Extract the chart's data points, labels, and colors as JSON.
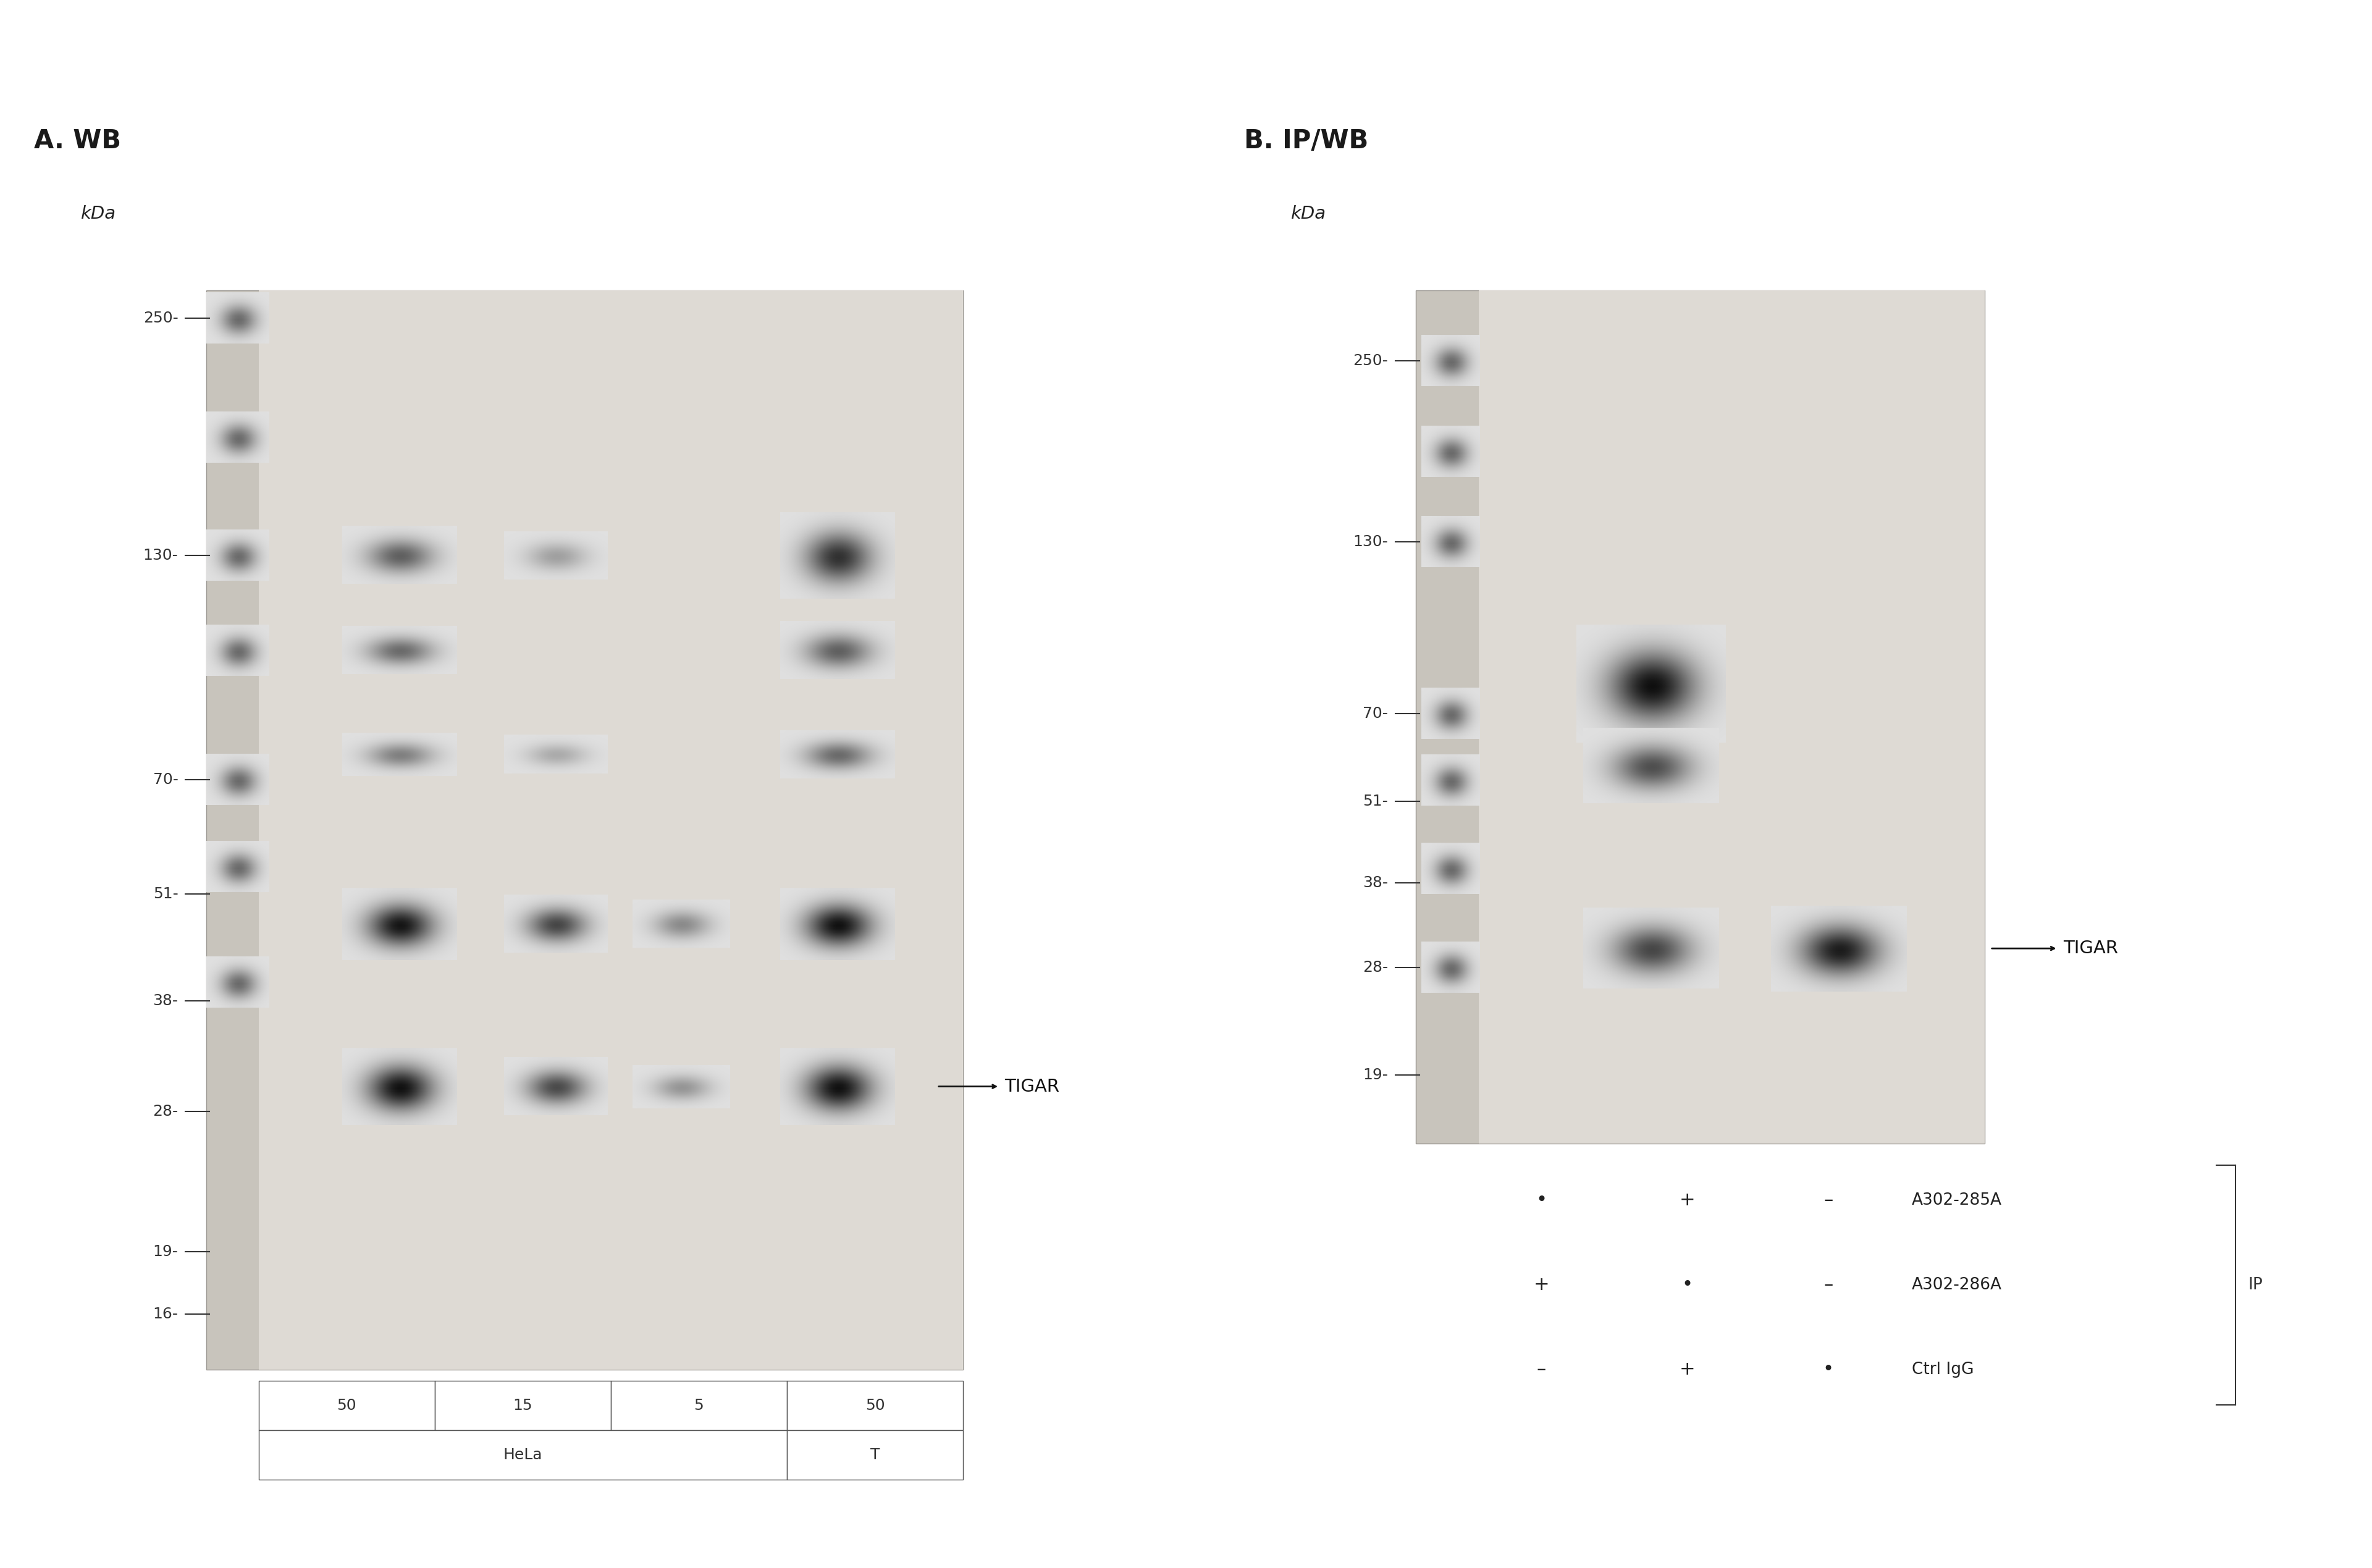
{
  "panel_A_title": "A. WB",
  "panel_B_title": "B. IP/WB",
  "kda_label": "kDa",
  "mw_markers_A": [
    250,
    130,
    70,
    51,
    38,
    28,
    19,
    16
  ],
  "mw_markers_B": [
    250,
    130,
    70,
    51,
    38,
    28,
    19
  ],
  "table_A_amounts": [
    "50",
    "15",
    "5",
    "50"
  ],
  "table_A_groups": [
    [
      "HeLa",
      3
    ],
    [
      "T",
      1
    ]
  ],
  "dot_rows_B": [
    [
      "•",
      "+",
      "–",
      "A302-285A"
    ],
    [
      "+",
      "•",
      "–",
      "A302-286A"
    ],
    [
      "–",
      "+",
      "•",
      "Ctrl IgG"
    ]
  ],
  "ip_label": "IP",
  "bands_A": [
    [
      0,
      130,
      0.6,
      1.0,
      1.2
    ],
    [
      0,
      100,
      0.55,
      1.0,
      1.0
    ],
    [
      0,
      75,
      0.45,
      1.0,
      0.9
    ],
    [
      0,
      47,
      0.95,
      1.0,
      1.5
    ],
    [
      0,
      30,
      0.97,
      1.0,
      1.6
    ],
    [
      1,
      130,
      0.3,
      0.9,
      1.0
    ],
    [
      1,
      75,
      0.25,
      0.9,
      0.8
    ],
    [
      1,
      47,
      0.72,
      0.9,
      1.2
    ],
    [
      1,
      30,
      0.7,
      0.9,
      1.2
    ],
    [
      2,
      47,
      0.4,
      0.85,
      1.0
    ],
    [
      2,
      30,
      0.35,
      0.85,
      0.9
    ],
    [
      3,
      130,
      0.82,
      1.0,
      1.8
    ],
    [
      3,
      100,
      0.6,
      1.0,
      1.2
    ],
    [
      3,
      75,
      0.55,
      1.0,
      1.0
    ],
    [
      3,
      47,
      0.97,
      1.0,
      1.5
    ],
    [
      3,
      30,
      0.97,
      1.0,
      1.6
    ]
  ],
  "bands_B": [
    [
      0,
      78,
      0.98,
      1.1,
      2.2
    ],
    [
      0,
      58,
      0.68,
      1.0,
      1.4
    ],
    [
      0,
      30,
      0.72,
      1.0,
      1.5
    ],
    [
      1,
      30,
      0.92,
      1.0,
      1.6
    ]
  ],
  "ladder_A_mws": [
    250,
    180,
    130,
    100,
    70,
    55,
    40
  ],
  "ladder_B_mws": [
    250,
    180,
    130,
    70,
    55,
    40,
    28
  ]
}
